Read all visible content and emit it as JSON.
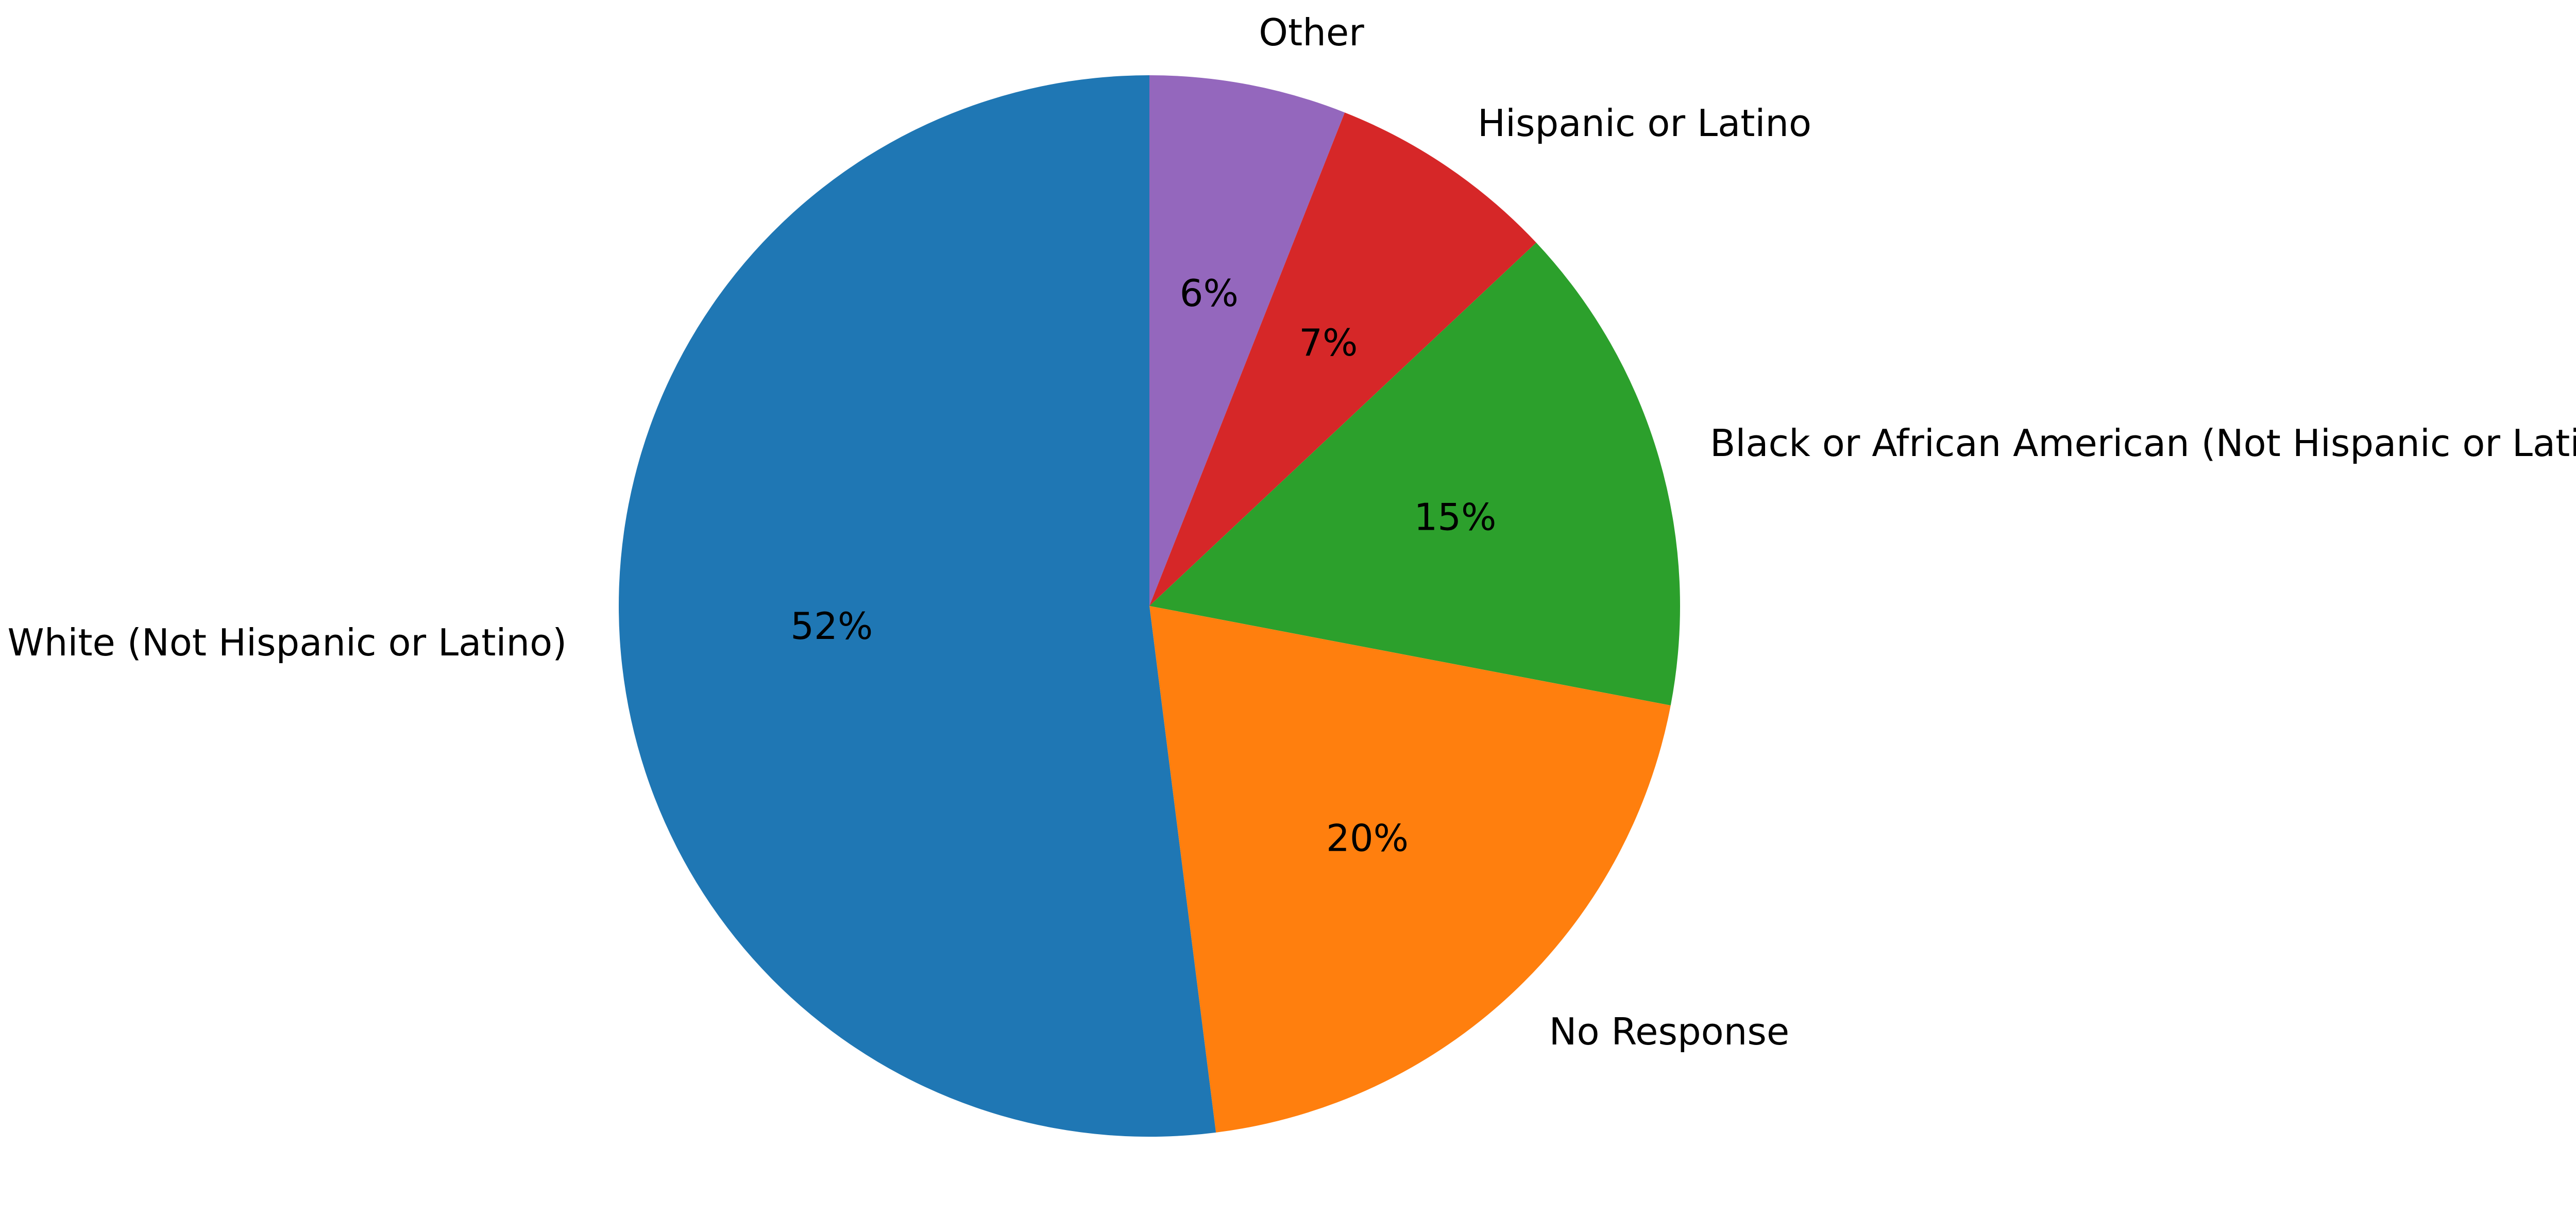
{
  "chart_data": {
    "type": "pie",
    "title": "",
    "start_angle_deg": 90,
    "direction": "clockwise",
    "slices": [
      {
        "label": "Other",
        "value": 6,
        "pct_label": "6%",
        "color": "#9467bd"
      },
      {
        "label": "Hispanic or Latino",
        "value": 7,
        "pct_label": "7%",
        "color": "#d62728"
      },
      {
        "label": "Black or African American (Not Hispanic or Latino)",
        "value": 15,
        "pct_label": "15%",
        "color": "#2ca02c"
      },
      {
        "label": "No Response",
        "value": 20,
        "pct_label": "20%",
        "color": "#ff7f0e"
      },
      {
        "label": "White (Not Hispanic or Latino)",
        "value": 52,
        "pct_label": "52%",
        "color": "#1f77b4"
      }
    ]
  }
}
